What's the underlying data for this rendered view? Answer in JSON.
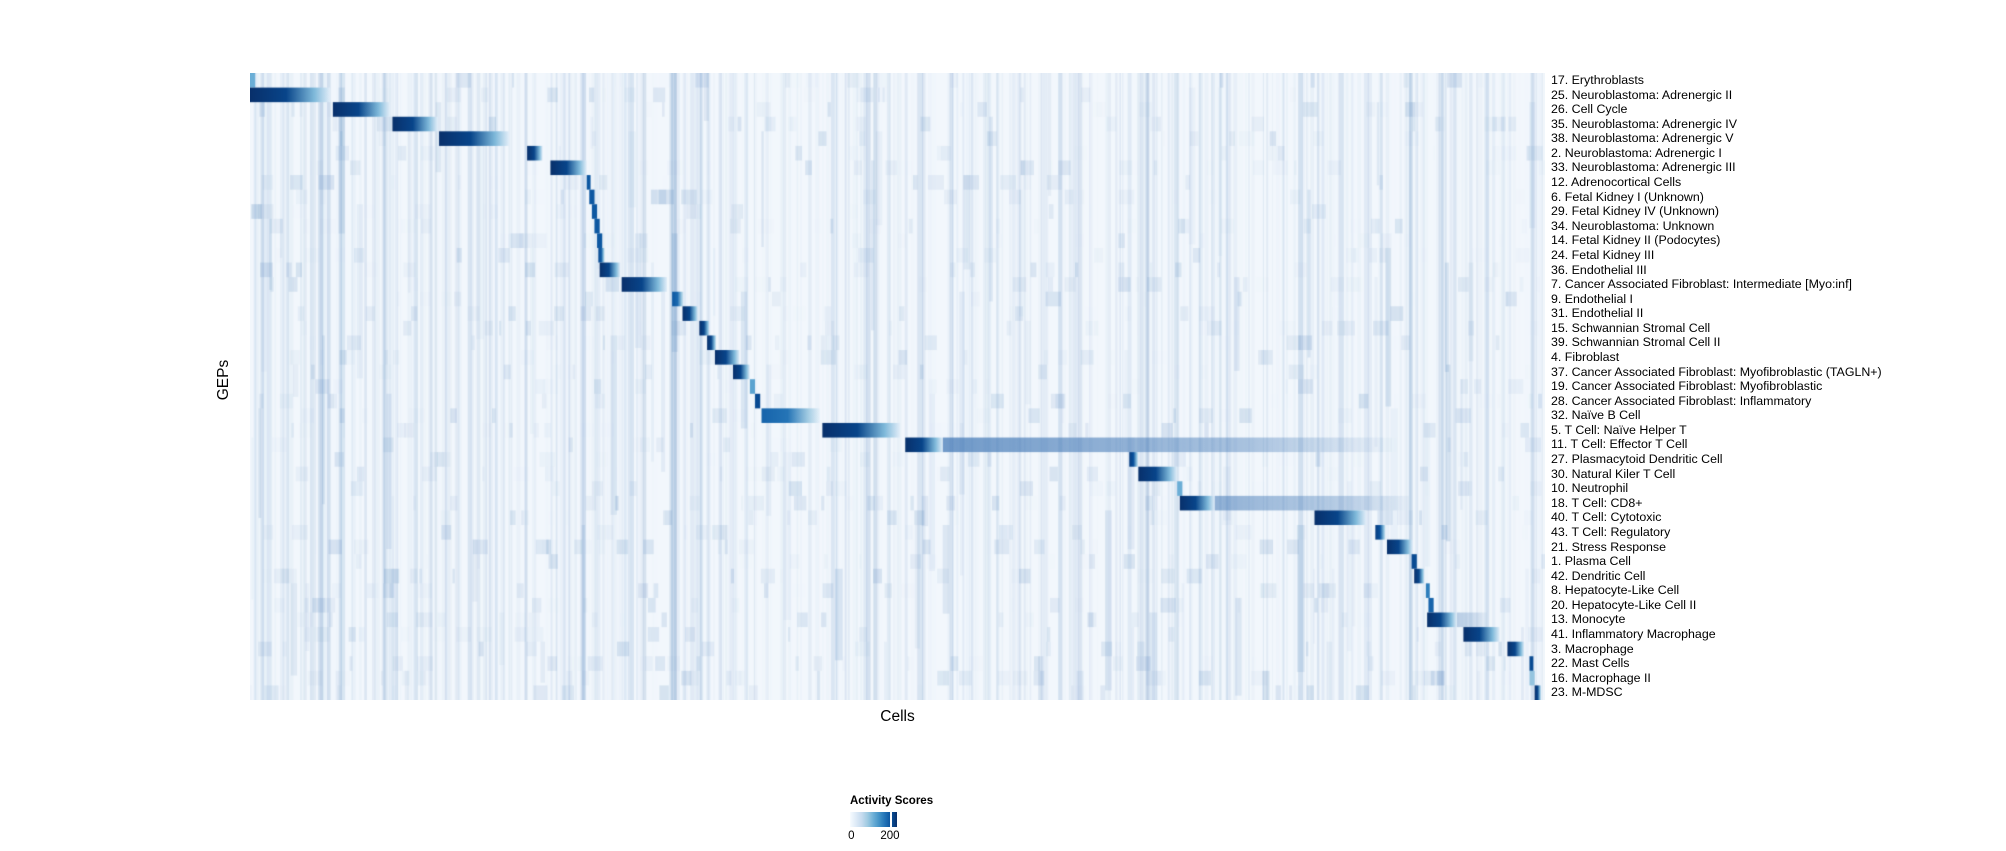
{
  "page": {
    "background": "#ffffff"
  },
  "chart_data": {
    "type": "heatmap",
    "title": "",
    "xlabel": "Cells",
    "ylabel": "GEPs",
    "grid": false,
    "plot_background": "#f2f7fc",
    "accent_dark": "#08306b",
    "noise_color": "#3f76b5",
    "legend": {
      "title": "Activity Scores",
      "min_label": "0",
      "max_label": "200",
      "tick_frac": 0.85,
      "position": "bottom-center"
    },
    "value_range": [
      0,
      235
    ],
    "colormap": {
      "name": "Blues",
      "stops": [
        [
          0.0,
          "#f7fbff"
        ],
        [
          0.125,
          "#deebf7"
        ],
        [
          0.25,
          "#c6dbef"
        ],
        [
          0.375,
          "#9ecae1"
        ],
        [
          0.5,
          "#6baed6"
        ],
        [
          0.625,
          "#4292c6"
        ],
        [
          0.75,
          "#2171b5"
        ],
        [
          0.875,
          "#08519c"
        ],
        [
          1.0,
          "#08306b"
        ]
      ]
    },
    "rows": [
      {
        "label": "17. Erythroblasts",
        "block": [
          0.0,
          0.004
        ],
        "peak": 0.5
      },
      {
        "label": "25. Neuroblastoma: Adrenergic II",
        "block": [
          0.0,
          0.062
        ],
        "peak": 1.0
      },
      {
        "label": "26. Cell Cycle",
        "block": [
          0.064,
          0.108
        ],
        "peak": 1.0
      },
      {
        "label": "35. Neuroblastoma: Adrenergic IV",
        "block": [
          0.11,
          0.145
        ],
        "peak": 1.0
      },
      {
        "label": "38. Neuroblastoma: Adrenergic V",
        "block": [
          0.146,
          0.2
        ],
        "peak": 1.0
      },
      {
        "label": "2. Neuroblastoma: Adrenergic I",
        "block": [
          0.214,
          0.226
        ],
        "peak": 1.0
      },
      {
        "label": "33. Neuroblastoma: Adrenergic III",
        "block": [
          0.232,
          0.26
        ],
        "peak": 1.0
      },
      {
        "label": "12. Adrenocortical Cells",
        "block": [
          0.26,
          0.263
        ],
        "peak": 0.85
      },
      {
        "label": "6. Fetal Kidney I (Unknown)",
        "block": [
          0.262,
          0.266
        ],
        "peak": 0.85
      },
      {
        "label": "29. Fetal Kidney IV (Unknown)",
        "block": [
          0.264,
          0.268
        ],
        "peak": 0.85
      },
      {
        "label": "34. Neuroblastoma: Unknown",
        "block": [
          0.266,
          0.27
        ],
        "peak": 0.85
      },
      {
        "label": "14. Fetal Kidney II (Podocytes)",
        "block": [
          0.268,
          0.272
        ],
        "peak": 0.85
      },
      {
        "label": "24. Fetal Kidney III",
        "block": [
          0.269,
          0.274
        ],
        "peak": 0.9
      },
      {
        "label": "36. Endothelial III",
        "block": [
          0.27,
          0.286
        ],
        "peak": 1.0
      },
      {
        "label": "7. Cancer Associated Fibroblast: Intermediate [Myo:inf]",
        "block": [
          0.287,
          0.322
        ],
        "peak": 1.0
      },
      {
        "label": "9. Endothelial I",
        "block": [
          0.326,
          0.335
        ],
        "peak": 0.85
      },
      {
        "label": "31. Endothelial II",
        "block": [
          0.334,
          0.346
        ],
        "peak": 1.0
      },
      {
        "label": "15. Schwannian Stromal Cell",
        "block": [
          0.347,
          0.355
        ],
        "peak": 1.0
      },
      {
        "label": "39. Schwannian Stromal Cell II",
        "block": [
          0.353,
          0.36
        ],
        "peak": 1.0
      },
      {
        "label": "4. Fibroblast",
        "block": [
          0.359,
          0.378
        ],
        "peak": 1.0
      },
      {
        "label": "37. Cancer Associated Fibroblast: Myofibroblastic (TAGLN+)",
        "block": [
          0.373,
          0.386
        ],
        "peak": 1.0
      },
      {
        "label": "19. Cancer Associated Fibroblast: Myofibroblastic",
        "block": [
          0.386,
          0.39
        ],
        "peak": 0.55
      },
      {
        "label": "28. Cancer Associated Fibroblast: Inflammatory",
        "block": [
          0.39,
          0.394
        ],
        "peak": 0.9
      },
      {
        "label": "32. Naïve B Cell",
        "block": [
          0.395,
          0.44
        ],
        "peak": 0.8
      },
      {
        "label": "5. T Cell: Naïve Helper T",
        "block": [
          0.442,
          0.502
        ],
        "peak": 1.0
      },
      {
        "label": "11. T Cell: Effector T Cell",
        "block": [
          0.506,
          0.535
        ],
        "peak": 1.0,
        "tail": [
          0.875,
          0.8
        ]
      },
      {
        "label": "27. Plasmacytoid Dendritic Cell",
        "block": [
          0.679,
          0.686
        ],
        "peak": 0.95
      },
      {
        "label": "30. Natural Kiler T Cell",
        "block": [
          0.686,
          0.716
        ],
        "peak": 1.0
      },
      {
        "label": "10. Neutrophil",
        "block": [
          0.716,
          0.72
        ],
        "peak": 0.5
      },
      {
        "label": "18. T Cell: CD8+",
        "block": [
          0.718,
          0.745
        ],
        "peak": 1.0,
        "tail": [
          0.895,
          0.6
        ]
      },
      {
        "label": "40. T Cell: Cytotoxic",
        "block": [
          0.822,
          0.862
        ],
        "peak": 1.0
      },
      {
        "label": "43. T Cell: Regulatory",
        "block": [
          0.869,
          0.877
        ],
        "peak": 0.95
      },
      {
        "label": "21. Stress Response",
        "block": [
          0.878,
          0.898
        ],
        "peak": 1.0
      },
      {
        "label": "1. Plasma Cell",
        "block": [
          0.897,
          0.901
        ],
        "peak": 0.9
      },
      {
        "label": "42. Dendritic Cell",
        "block": [
          0.899,
          0.907
        ],
        "peak": 1.0
      },
      {
        "label": "8. Hepatocyte-Like Cell",
        "block": [
          0.908,
          0.911
        ],
        "peak": 0.7
      },
      {
        "label": "20. Hepatocyte-Like Cell II",
        "block": [
          0.91,
          0.914
        ],
        "peak": 0.8
      },
      {
        "label": "13. Monocyte",
        "block": [
          0.909,
          0.932
        ],
        "peak": 1.0,
        "tail": [
          0.955,
          0.35
        ]
      },
      {
        "label": "41. Inflammatory Macrophage",
        "block": [
          0.937,
          0.965
        ],
        "peak": 1.0
      },
      {
        "label": "3. Macrophage",
        "block": [
          0.971,
          0.984
        ],
        "peak": 1.0
      },
      {
        "label": "22. Mast Cells",
        "block": [
          0.988,
          0.991
        ],
        "peak": 0.9
      },
      {
        "label": "16. Macrophage II",
        "block": [
          0.988,
          0.992
        ],
        "peak": 0.4
      },
      {
        "label": "23. M-MDSC",
        "block": [
          0.992,
          0.997
        ],
        "peak": 1.0
      }
    ],
    "noise": {
      "seed": 20061,
      "column_streaks": 650,
      "strong_streaks": 30,
      "row_speckles": 1100,
      "column_segments": 90
    }
  }
}
